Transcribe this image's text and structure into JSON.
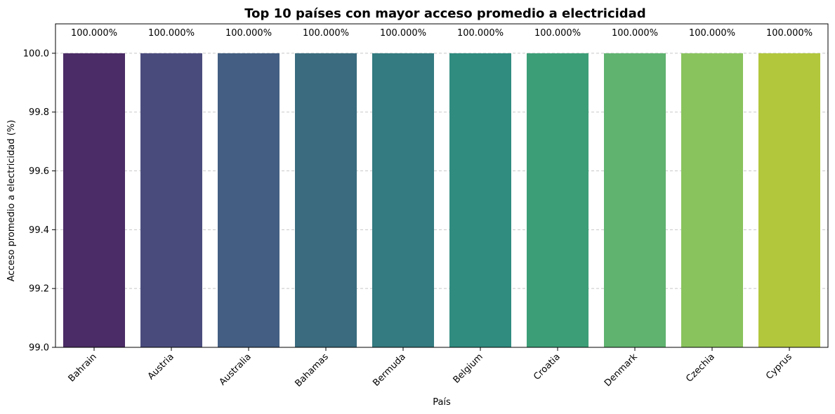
{
  "chart_data": {
    "type": "bar",
    "title": "Top 10 países con mayor acceso promedio a electricidad",
    "xlabel": "País",
    "ylabel": "Acceso promedio a electricidad (%)",
    "categories": [
      "Bahrain",
      "Austria",
      "Australia",
      "Bahamas",
      "Bermuda",
      "Belgium",
      "Croatia",
      "Denmark",
      "Czechia",
      "Cyprus"
    ],
    "values": [
      100.0,
      100.0,
      100.0,
      100.0,
      100.0,
      100.0,
      100.0,
      100.0,
      100.0,
      100.0
    ],
    "value_labels": [
      "100.000%",
      "100.000%",
      "100.000%",
      "100.000%",
      "100.000%",
      "100.000%",
      "100.000%",
      "100.000%",
      "100.000%",
      "100.000%"
    ],
    "ylim": [
      99.0,
      100.1
    ],
    "yticks": [
      99.0,
      99.2,
      99.4,
      99.6,
      99.8,
      100.0
    ],
    "ytick_labels": [
      "99.0",
      "99.2",
      "99.4",
      "99.6",
      "99.8",
      "100.0"
    ],
    "grid": "y-dashed",
    "colors": [
      "#4b2c66",
      "#4a4b7d",
      "#435e82",
      "#3a6b7e",
      "#337b80",
      "#2f8c7f",
      "#3c9e77",
      "#5fb36f",
      "#89c35d",
      "#b2c73c"
    ],
    "gridline_color": "#c8c8c8"
  }
}
